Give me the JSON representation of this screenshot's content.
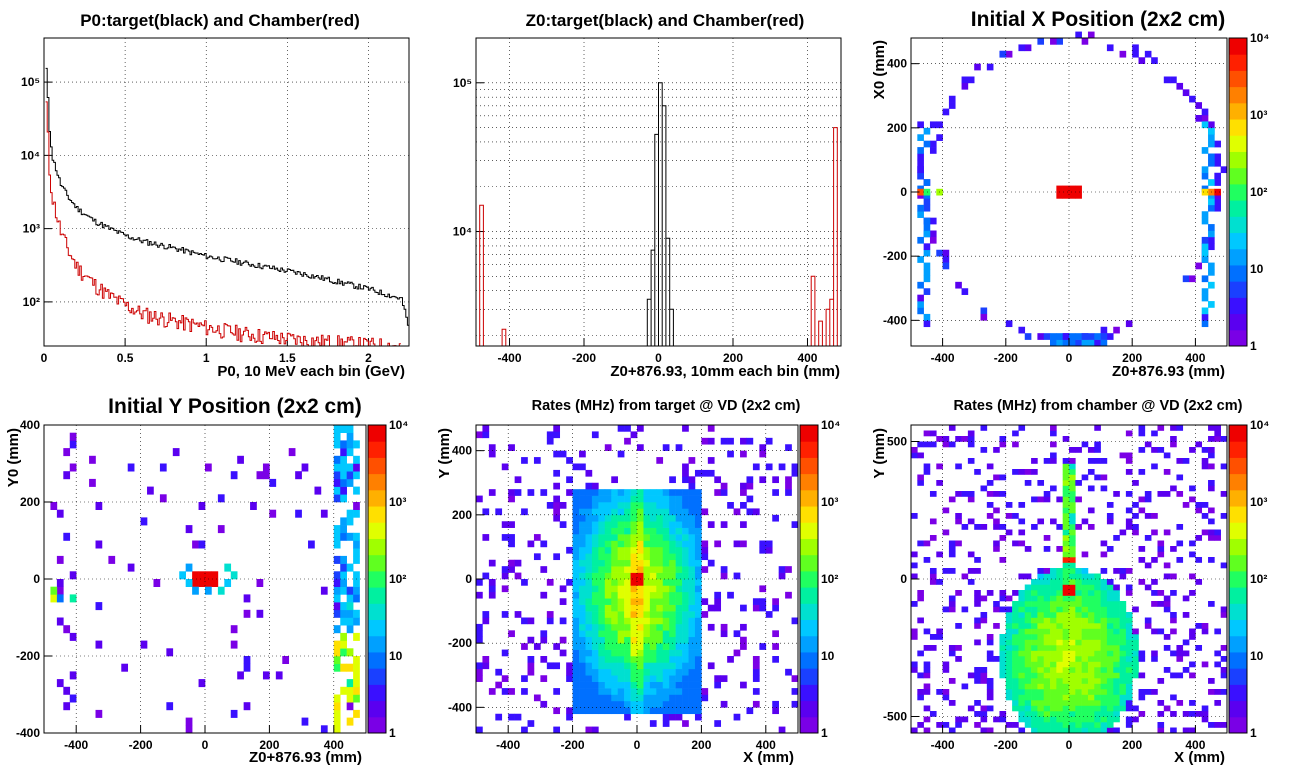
{
  "colors": {
    "target": "#000000",
    "chamber": "#cc0000",
    "palette": [
      "#7a00e6",
      "#5a00f0",
      "#3a10ff",
      "#1a40ff",
      "#0070ff",
      "#00a0ff",
      "#00c8ff",
      "#00e0d0",
      "#00f0a0",
      "#20ff60",
      "#60ff20",
      "#a0ff00",
      "#e0ff00",
      "#ffe000",
      "#ffb000",
      "#ff8000",
      "#ff5000",
      "#ff2000",
      "#ee0000"
    ]
  },
  "chart_data": [
    {
      "id": "p0",
      "type": "line",
      "title": "P0:target(black) and Chamber(red)",
      "xlabel": "P0, 10 MeV each bin (GeV)",
      "ylabel": "",
      "xlim": [
        0,
        2.25
      ],
      "ylim": [
        25,
        400000
      ],
      "ylog": true,
      "grid": true,
      "xticks": [
        0,
        0.5,
        1,
        1.5,
        2
      ],
      "xtick_labels": [
        "0",
        "0.5",
        "1",
        "1.5",
        "2"
      ],
      "yticks": [
        100,
        1000,
        10000,
        100000
      ],
      "ytick_labels": [
        "10²",
        "10³",
        "10⁴",
        "10⁵"
      ],
      "series": [
        {
          "name": "target",
          "x": [
            0.01,
            0.03,
            0.05,
            0.1,
            0.15,
            0.2,
            0.3,
            0.4,
            0.5,
            0.6,
            0.8,
            1.0,
            1.2,
            1.4,
            1.6,
            1.8,
            2.0,
            2.2,
            2.25
          ],
          "values": [
            150000,
            22000,
            9000,
            4000,
            2600,
            1900,
            1300,
            1000,
            800,
            680,
            540,
            420,
            350,
            290,
            240,
            190,
            150,
            110,
            40
          ]
        },
        {
          "name": "chamber",
          "x": [
            0.01,
            0.03,
            0.05,
            0.1,
            0.15,
            0.2,
            0.3,
            0.4,
            0.5,
            0.6,
            0.8,
            1.0,
            1.2,
            1.4,
            1.6,
            1.8,
            2.0,
            2.2
          ],
          "values": [
            50000,
            6000,
            2500,
            900,
            480,
            300,
            180,
            120,
            90,
            70,
            55,
            45,
            38,
            33,
            30,
            28,
            26,
            25
          ]
        }
      ]
    },
    {
      "id": "z0",
      "type": "line",
      "title": "Z0:target(black) and Chamber(red)",
      "xlabel": "Z0+876.93, 10mm each bin (mm)",
      "ylabel": "",
      "xlim": [
        -490,
        490
      ],
      "ylim": [
        1700,
        200000
      ],
      "ylog": true,
      "grid": true,
      "xticks": [
        -400,
        -200,
        0,
        200,
        400
      ],
      "xtick_labels": [
        "-400",
        "-200",
        "0",
        "200",
        "400"
      ],
      "yticks": [
        10000,
        100000
      ],
      "ytick_labels": [
        "10⁴",
        "10⁵"
      ],
      "series": [
        {
          "name": "target",
          "bins": [
            [
              -40,
              -30,
              1700
            ],
            [
              -30,
              -20,
              3500
            ],
            [
              -20,
              -10,
              7500
            ],
            [
              -10,
              0,
              45000
            ],
            [
              0,
              10,
              100000
            ],
            [
              10,
              20,
              70000
            ],
            [
              20,
              30,
              9000
            ],
            [
              30,
              40,
              3000
            ],
            [
              40,
              50,
              1700
            ]
          ]
        },
        {
          "name": "chamber",
          "bins": [
            [
              -480,
              -470,
              15000
            ],
            [
              -420,
              -410,
              2200
            ],
            [
              410,
              420,
              5000
            ],
            [
              430,
              440,
              2500
            ],
            [
              450,
              460,
              3000
            ],
            [
              460,
              470,
              3500
            ],
            [
              470,
              480,
              50000
            ]
          ]
        }
      ]
    },
    {
      "id": "xpos",
      "type": "heatmap",
      "title": "Initial X Position (2x2 cm)",
      "xlabel": "Z0+876.93 (mm)",
      "ylabel": "X0 (mm)",
      "xlim": [
        -500,
        500
      ],
      "ylim": [
        -480,
        480
      ],
      "xticks": [
        -400,
        -200,
        0,
        200,
        400
      ],
      "xtick_labels": [
        "-400",
        "-200",
        "0",
        "200",
        "400"
      ],
      "yticks": [
        -400,
        -200,
        0,
        200,
        400
      ],
      "ytick_labels": [
        "-400",
        "-200",
        "0",
        "200",
        "400"
      ],
      "colorbar": {
        "range": [
          1,
          10000
        ],
        "labels": [
          "1",
          "10",
          "10²",
          "10³",
          "10⁴"
        ]
      },
      "pattern": "ring"
    },
    {
      "id": "ypos",
      "type": "heatmap",
      "title": "Initial Y Position (2x2 cm)",
      "xlabel": "Z0+876.93 (mm)",
      "ylabel": "Y0 (mm)",
      "xlim": [
        -500,
        500
      ],
      "ylim": [
        -400,
        400
      ],
      "xticks": [
        -400,
        -200,
        0,
        200,
        400
      ],
      "xtick_labels": [
        "-400",
        "-200",
        "0",
        "200",
        "400"
      ],
      "yticks": [
        -400,
        -200,
        0,
        200,
        400
      ],
      "ytick_labels": [
        "-400",
        "-200",
        "0",
        "200",
        "400"
      ],
      "colorbar": {
        "range": [
          1,
          10000
        ],
        "labels": [
          "1",
          "10",
          "10²",
          "10³",
          "10⁴"
        ]
      },
      "pattern": "ypos"
    },
    {
      "id": "rate_target",
      "type": "heatmap",
      "title": "Rates (MHz) from target @ VD (2x2 cm)",
      "xlabel": "X (mm)",
      "ylabel": "Y (mm)",
      "xlim": [
        -500,
        500
      ],
      "ylim": [
        -480,
        480
      ],
      "xticks": [
        -400,
        -200,
        0,
        200,
        400
      ],
      "xtick_labels": [
        "-400",
        "-200",
        "0",
        "200",
        "400"
      ],
      "yticks": [
        -400,
        -200,
        0,
        200,
        400
      ],
      "ytick_labels": [
        "-400",
        "-200",
        "0",
        "200",
        "400"
      ],
      "colorbar": {
        "range": [
          1,
          10000
        ],
        "labels": [
          "1",
          "10",
          "10²",
          "10³",
          "10⁴"
        ]
      },
      "pattern": "target"
    },
    {
      "id": "rate_chamber",
      "type": "heatmap",
      "title": "Rates (MHz) from chamber @ VD (2x2 cm)",
      "xlabel": "X (mm)",
      "ylabel": "Y (mm)",
      "xlim": [
        -500,
        500
      ],
      "ylim": [
        -560,
        560
      ],
      "xticks": [
        -400,
        -200,
        0,
        200,
        400
      ],
      "xtick_labels": [
        "-400",
        "-200",
        "0",
        "200",
        "400"
      ],
      "yticks": [
        -500,
        0,
        500
      ],
      "ytick_labels": [
        "-500",
        "0",
        "500"
      ],
      "colorbar": {
        "range": [
          1,
          10000
        ],
        "labels": [
          "1",
          "10",
          "10²",
          "10³",
          "10⁴"
        ]
      },
      "pattern": "chamber"
    }
  ]
}
